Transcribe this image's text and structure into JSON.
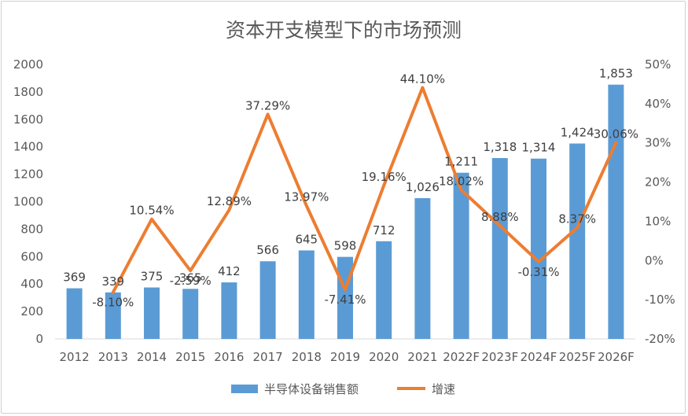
{
  "chart_data": {
    "type": "bar",
    "title": "资本开支模型下的市场预测",
    "categories": [
      "2012",
      "2013",
      "2014",
      "2015",
      "2016",
      "2017",
      "2018",
      "2019",
      "2020",
      "2021",
      "2022F",
      "2023F",
      "2024F",
      "2025F",
      "2026F"
    ],
    "series": [
      {
        "name": "半导体设备销售额",
        "type": "bar",
        "axis": "left",
        "color": "#5b9bd5",
        "values": [
          369,
          339,
          375,
          365,
          412,
          566,
          645,
          598,
          712,
          1026,
          1211,
          1318,
          1314,
          1424,
          1853
        ],
        "labels": [
          "369",
          "339",
          "375",
          "365",
          "412",
          "566",
          "645",
          "598",
          "712",
          "1,026",
          "1,211",
          "1,318",
          "1,314",
          "1,424",
          "1,853"
        ]
      },
      {
        "name": "增速",
        "type": "line",
        "axis": "right",
        "color": "#ed7d31",
        "values": [
          null,
          -8.1,
          10.54,
          -2.59,
          12.89,
          37.29,
          13.97,
          -7.41,
          19.16,
          44.1,
          18.02,
          8.88,
          -0.31,
          8.37,
          30.06
        ],
        "labels": [
          "",
          "-8.10%",
          "10.54%",
          "-2.59%",
          "12.89%",
          "37.29%",
          "13.97%",
          "-7.41%",
          "19.16%",
          "44.10%",
          "18.02%",
          "8.88%",
          "-0.31%",
          "8.37%",
          "30.06%"
        ]
      }
    ],
    "left_axis": {
      "min": 0,
      "max": 2000,
      "step": 200,
      "ticks": [
        "0",
        "200",
        "400",
        "600",
        "800",
        "1000",
        "1200",
        "1400",
        "1600",
        "1800",
        "2000"
      ]
    },
    "right_axis": {
      "min": -20,
      "max": 50,
      "step": 10,
      "ticks": [
        "-20%",
        "-10%",
        "0%",
        "10%",
        "20%",
        "30%",
        "40%",
        "50%"
      ]
    },
    "grid": false,
    "legend_position": "bottom"
  }
}
